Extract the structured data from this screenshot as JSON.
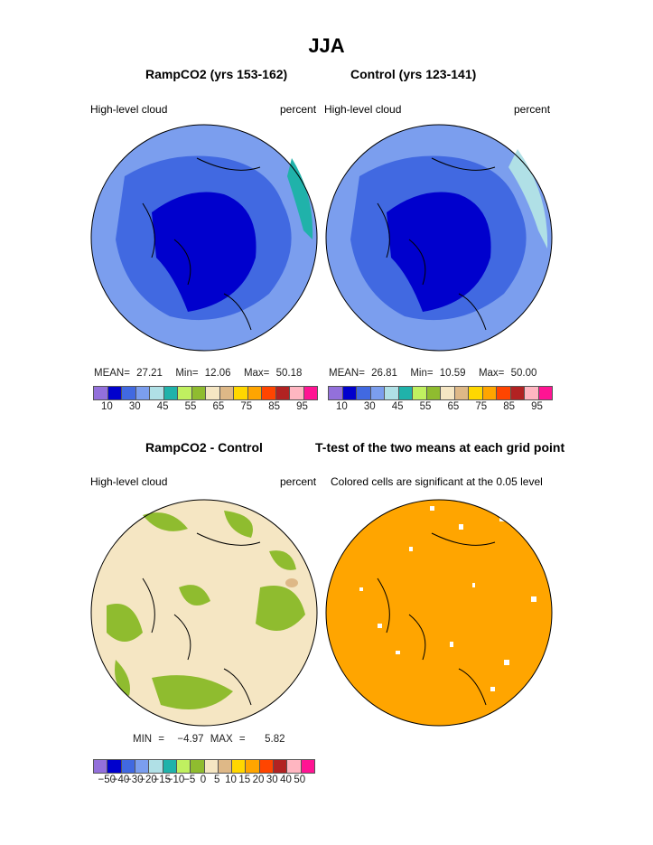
{
  "title": "JJA",
  "colors": [
    "#9370DB",
    "#0000CD",
    "#4169E1",
    "#7B9EEE",
    "#B0E0E6",
    "#20B2AA",
    "#C0F060",
    "#8FBC2F",
    "#F5E6C3",
    "#DEB887",
    "#FFD700",
    "#FFA500",
    "#FF4500",
    "#B22222",
    "#FFB6C1",
    "#FF1493"
  ],
  "panels": [
    {
      "title": "RampCO2 (yrs 153-162)",
      "left_label": "High-level cloud",
      "right_label": "percent",
      "stats": {
        "mean_label": "MEAN=",
        "mean": "27.21",
        "min_label": "Min=",
        "min": "12.06",
        "max_label": "Max=",
        "max": "50.18"
      }
    },
    {
      "title": "Control (yrs 123-141)",
      "left_label": "High-level cloud",
      "right_label": "percent",
      "stats": {
        "mean_label": "MEAN=",
        "mean": "26.81",
        "min_label": "Min=",
        "min": "10.59",
        "max_label": "Max=",
        "max": "50.00"
      }
    },
    {
      "title": "RampCO2 - Control",
      "left_label": "High-level cloud",
      "right_label": "percent",
      "stats": {
        "min_label": "MIN =",
        "min": "−4.97",
        "max_label": "MAX =",
        "max": "5.82"
      }
    },
    {
      "title": "T-test of the two means at each grid point",
      "left_label": "Colored cells are significant at the 0.05 level"
    }
  ],
  "abs_ticks": [
    "10",
    "30",
    "45",
    "55",
    "65",
    "75",
    "85",
    "95"
  ],
  "diff_ticks": [
    "−50",
    "−40",
    "−30",
    "−20",
    "−15",
    "−10",
    "−5",
    "0",
    "5",
    "10",
    "15",
    "20",
    "30",
    "40",
    "50"
  ]
}
